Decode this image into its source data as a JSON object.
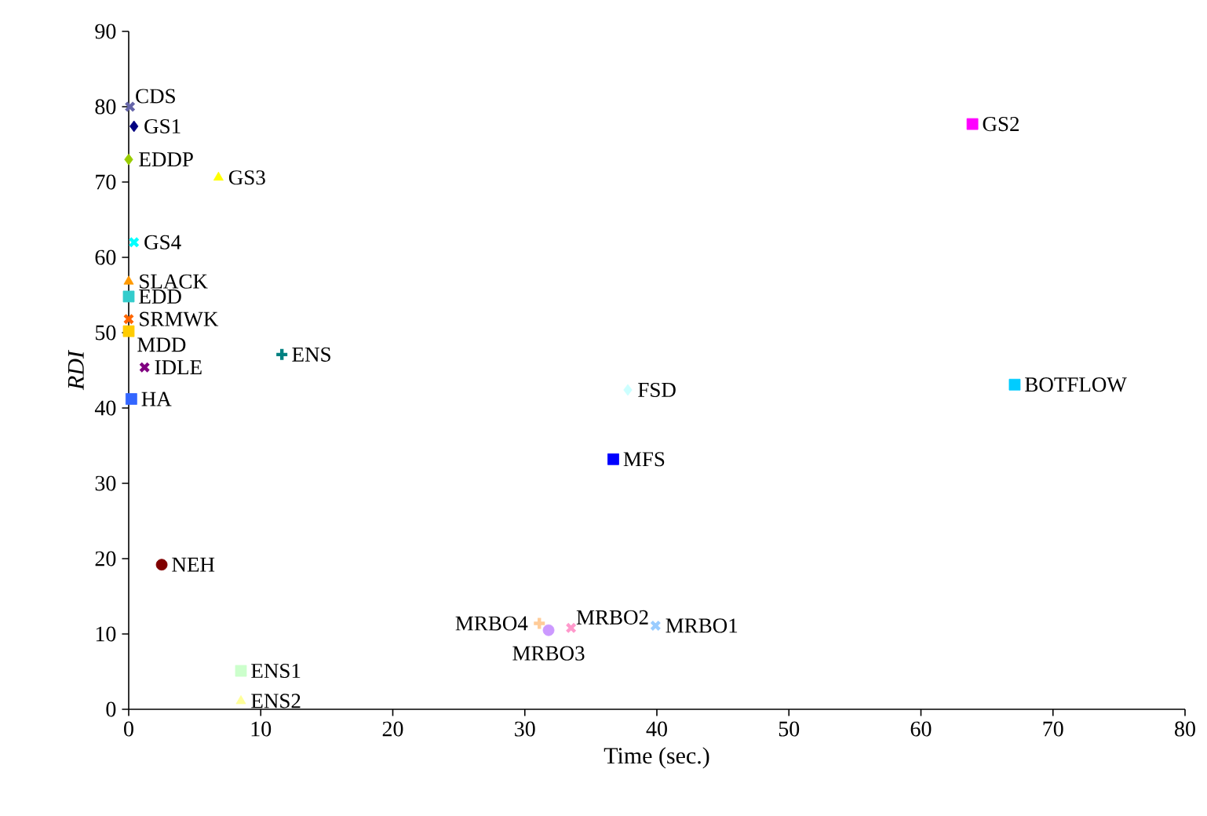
{
  "chart_data": {
    "type": "scatter",
    "xlabel": "Time (sec.)",
    "ylabel": "RDI",
    "xlim": [
      0,
      80
    ],
    "xticks": [
      0,
      10,
      20,
      30,
      40,
      50,
      60,
      70,
      80
    ],
    "ylim": [
      0,
      90
    ],
    "yticks": [
      0,
      10,
      20,
      30,
      40,
      50,
      60,
      70,
      80,
      90
    ],
    "grid": false,
    "series": [
      {
        "name": "CDS",
        "color": "#6666aa",
        "marker": "cross",
        "x": [
          0.1
        ],
        "values": [
          80
        ]
      },
      {
        "name": "GS1",
        "color": "#000080",
        "marker": "diamond",
        "x": [
          0.4
        ],
        "values": [
          77.4
        ]
      },
      {
        "name": "EDDP",
        "color": "#99cc00",
        "marker": "diamond",
        "x": [
          0
        ],
        "values": [
          73
        ]
      },
      {
        "name": "GS3",
        "color": "#ffff00",
        "marker": "triangle",
        "x": [
          6.8
        ],
        "values": [
          70.6
        ]
      },
      {
        "name": "GS4",
        "color": "#00ffff",
        "marker": "cross",
        "x": [
          0.4
        ],
        "values": [
          62
        ]
      },
      {
        "name": "SLACK",
        "color": "#ff9900",
        "marker": "triangle",
        "x": [
          0
        ],
        "values": [
          56.8
        ]
      },
      {
        "name": "EDD",
        "color": "#33cccc",
        "marker": "square",
        "x": [
          0
        ],
        "values": [
          54.8
        ]
      },
      {
        "name": "SRMWK",
        "color": "#ff6600",
        "marker": "cross",
        "x": [
          0
        ],
        "values": [
          51.8
        ]
      },
      {
        "name": "MDD",
        "color": "#ffcc00",
        "marker": "square",
        "x": [
          0
        ],
        "values": [
          50.2
        ]
      },
      {
        "name": "IDLE",
        "color": "#800080",
        "marker": "cross",
        "x": [
          1.2
        ],
        "values": [
          45.4
        ]
      },
      {
        "name": "HA",
        "color": "#3366ff",
        "marker": "square",
        "x": [
          0.2
        ],
        "values": [
          41.2
        ]
      },
      {
        "name": "ENS",
        "color": "#008080",
        "marker": "plus",
        "x": [
          11.6
        ],
        "values": [
          47.1
        ]
      },
      {
        "name": "NEH",
        "color": "#800000",
        "marker": "circle",
        "x": [
          2.5
        ],
        "values": [
          19.2
        ]
      },
      {
        "name": "ENS1",
        "color": "#ccffcc",
        "marker": "square",
        "x": [
          8.5
        ],
        "values": [
          5.1
        ]
      },
      {
        "name": "ENS2",
        "color": "#ffff99",
        "marker": "triangle",
        "x": [
          8.5
        ],
        "values": [
          1.1
        ]
      },
      {
        "name": "MRBO4",
        "color": "#ffcc99",
        "marker": "plus",
        "x": [
          31.1
        ],
        "values": [
          11.4
        ]
      },
      {
        "name": "MRBO3",
        "color": "#cc99ff",
        "marker": "circle",
        "x": [
          31.8
        ],
        "values": [
          10.5
        ]
      },
      {
        "name": "MRBO2",
        "color": "#ff99cc",
        "marker": "cross",
        "x": [
          33.5
        ],
        "values": [
          10.8
        ]
      },
      {
        "name": "MRBO1",
        "color": "#99ccff",
        "marker": "cross",
        "x": [
          39.9
        ],
        "values": [
          11.1
        ]
      },
      {
        "name": "GS2",
        "color": "#ff00ff",
        "marker": "square",
        "x": [
          63.9
        ],
        "values": [
          77.7
        ]
      },
      {
        "name": "FSD",
        "color": "#ccffff",
        "marker": "diamond",
        "x": [
          37.8
        ],
        "values": [
          42.4
        ]
      },
      {
        "name": "BOTFLOW",
        "color": "#00ccff",
        "marker": "square",
        "x": [
          67.1
        ],
        "values": [
          43.1
        ]
      },
      {
        "name": "MFS",
        "color": "#0000ff",
        "marker": "square",
        "x": [
          36.7
        ],
        "values": [
          33.2
        ]
      }
    ]
  }
}
